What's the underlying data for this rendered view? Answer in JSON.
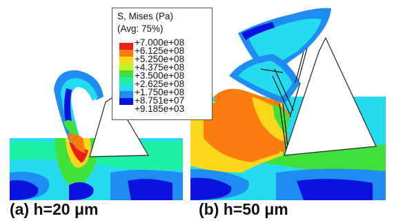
{
  "legend": {
    "title_line1": "S, Mises (Pa)",
    "title_line2": "(Avg: 75%)",
    "ticks": [
      "+7.000e+08",
      "+6.125e+08",
      "+5.250e+08",
      "+4.375e+08",
      "+3.500e+08",
      "+2.625e+08",
      "+1.750e+08",
      "+8.751e+07",
      "+9.185e+03"
    ],
    "bands": [
      "#e8211b",
      "#fb7d0f",
      "#f9d81b",
      "#c6f21e",
      "#3fe03a",
      "#1ef0a4",
      "#25dcef",
      "#1f8cf2",
      "#0b12dd"
    ]
  },
  "captions": {
    "left": "(a) h=20 μm",
    "right": "(b) h=50 μm"
  },
  "palette": {
    "deep_blue": "#0b12dd",
    "blue": "#1f8cf2",
    "cyan": "#25dcef",
    "aqua": "#1ef0a4",
    "green": "#3fe03a",
    "yellow_green": "#c6f21e",
    "yellow": "#f9d81b",
    "orange": "#fb7d0f",
    "red": "#e8211b",
    "tool_outline": "#222222"
  }
}
